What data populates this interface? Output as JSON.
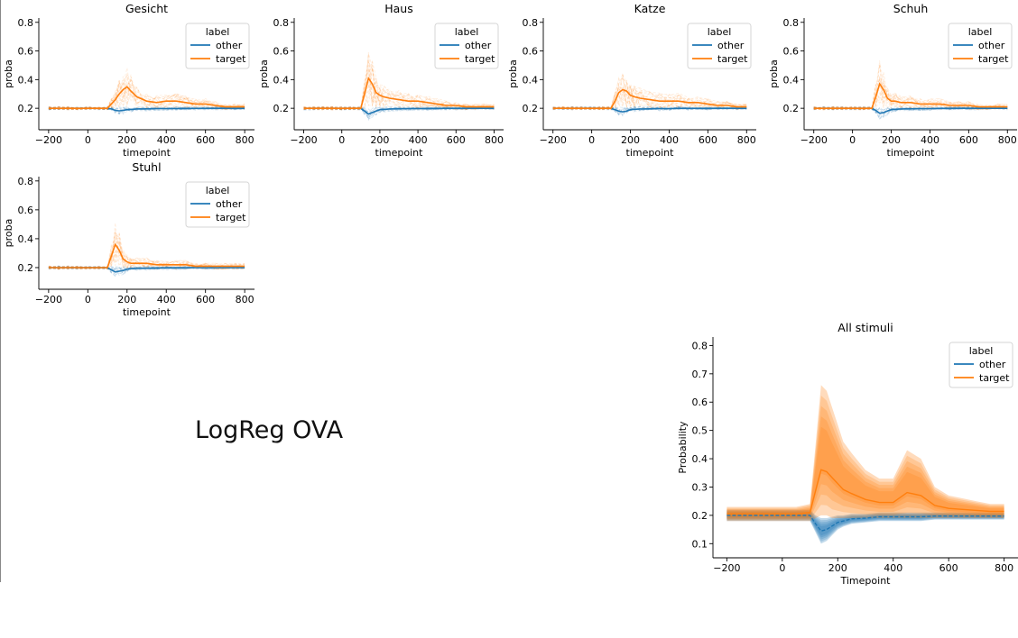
{
  "figure": {
    "caption": "LogReg OVA",
    "colors": {
      "other": "#1f77b4",
      "target": "#ff7f0e"
    }
  },
  "chart_data": [
    {
      "type": "line",
      "title": "Gesicht",
      "xlabel": "timepoint",
      "ylabel": "proba",
      "xlim": [
        -250,
        850
      ],
      "ylim": [
        0.05,
        0.83
      ],
      "xticks": [
        -200,
        0,
        200,
        400,
        600,
        800
      ],
      "yticks": [
        0.2,
        0.4,
        0.6,
        0.8
      ],
      "legend": {
        "title": "label",
        "position": "top-right",
        "entries": [
          "other",
          "target"
        ]
      },
      "x": [
        -200,
        -150,
        -100,
        -50,
        0,
        50,
        100,
        120,
        140,
        160,
        180,
        200,
        220,
        250,
        300,
        350,
        400,
        450,
        500,
        550,
        600,
        650,
        700,
        750,
        800
      ],
      "series": [
        {
          "name": "other",
          "values": [
            0.2,
            0.2,
            0.2,
            0.2,
            0.2,
            0.2,
            0.2,
            0.195,
            0.185,
            0.182,
            0.185,
            0.19,
            0.192,
            0.195,
            0.196,
            0.197,
            0.198,
            0.198,
            0.199,
            0.199,
            0.199,
            0.2,
            0.2,
            0.2,
            0.2
          ]
        },
        {
          "name": "target",
          "values": [
            0.2,
            0.2,
            0.2,
            0.2,
            0.2,
            0.2,
            0.2,
            0.23,
            0.26,
            0.3,
            0.33,
            0.35,
            0.32,
            0.28,
            0.25,
            0.24,
            0.25,
            0.25,
            0.24,
            0.23,
            0.23,
            0.22,
            0.21,
            0.21,
            0.21
          ]
        }
      ]
    },
    {
      "type": "line",
      "title": "Haus",
      "xlabel": "timepoint",
      "ylabel": "proba",
      "xlim": [
        -250,
        850
      ],
      "ylim": [
        0.05,
        0.83
      ],
      "xticks": [
        -200,
        0,
        200,
        400,
        600,
        800
      ],
      "yticks": [
        0.2,
        0.4,
        0.6,
        0.8
      ],
      "legend": {
        "title": "label",
        "position": "top-right",
        "entries": [
          "other",
          "target"
        ]
      },
      "x": [
        -200,
        -150,
        -100,
        -50,
        0,
        50,
        100,
        120,
        140,
        160,
        180,
        200,
        220,
        250,
        300,
        350,
        400,
        450,
        500,
        550,
        600,
        650,
        700,
        750,
        800
      ],
      "series": [
        {
          "name": "other",
          "values": [
            0.2,
            0.2,
            0.2,
            0.2,
            0.2,
            0.2,
            0.2,
            0.18,
            0.16,
            0.17,
            0.18,
            0.19,
            0.192,
            0.195,
            0.196,
            0.197,
            0.198,
            0.199,
            0.199,
            0.2,
            0.2,
            0.2,
            0.2,
            0.2,
            0.2
          ]
        },
        {
          "name": "target",
          "values": [
            0.2,
            0.2,
            0.2,
            0.2,
            0.2,
            0.2,
            0.2,
            0.3,
            0.41,
            0.37,
            0.31,
            0.29,
            0.28,
            0.27,
            0.26,
            0.25,
            0.25,
            0.24,
            0.23,
            0.22,
            0.22,
            0.21,
            0.21,
            0.21,
            0.21
          ]
        }
      ]
    },
    {
      "type": "line",
      "title": "Katze",
      "xlabel": "timepoint",
      "ylabel": "proba",
      "xlim": [
        -250,
        850
      ],
      "ylim": [
        0.05,
        0.83
      ],
      "xticks": [
        -200,
        0,
        200,
        400,
        600,
        800
      ],
      "yticks": [
        0.2,
        0.4,
        0.6,
        0.8
      ],
      "legend": {
        "title": "label",
        "position": "top-right",
        "entries": [
          "other",
          "target"
        ]
      },
      "x": [
        -200,
        -150,
        -100,
        -50,
        0,
        50,
        100,
        120,
        140,
        160,
        180,
        200,
        220,
        250,
        300,
        350,
        400,
        450,
        500,
        550,
        600,
        650,
        700,
        750,
        800
      ],
      "series": [
        {
          "name": "other",
          "values": [
            0.2,
            0.2,
            0.2,
            0.2,
            0.2,
            0.2,
            0.2,
            0.19,
            0.18,
            0.175,
            0.18,
            0.19,
            0.193,
            0.195,
            0.196,
            0.197,
            0.198,
            0.199,
            0.199,
            0.2,
            0.2,
            0.2,
            0.2,
            0.2,
            0.2
          ]
        },
        {
          "name": "target",
          "values": [
            0.2,
            0.2,
            0.2,
            0.2,
            0.2,
            0.2,
            0.2,
            0.25,
            0.31,
            0.33,
            0.32,
            0.29,
            0.28,
            0.27,
            0.26,
            0.25,
            0.25,
            0.25,
            0.24,
            0.24,
            0.23,
            0.22,
            0.22,
            0.21,
            0.21
          ]
        }
      ]
    },
    {
      "type": "line",
      "title": "Schuh",
      "xlabel": "timepoint",
      "ylabel": "proba",
      "xlim": [
        -250,
        850
      ],
      "ylim": [
        0.05,
        0.83
      ],
      "xticks": [
        -200,
        0,
        200,
        400,
        600,
        800
      ],
      "yticks": [
        0.2,
        0.4,
        0.6,
        0.8
      ],
      "legend": {
        "title": "label",
        "position": "top-right",
        "entries": [
          "other",
          "target"
        ]
      },
      "x": [
        -200,
        -150,
        -100,
        -50,
        0,
        50,
        100,
        120,
        140,
        160,
        180,
        200,
        220,
        250,
        300,
        350,
        400,
        450,
        500,
        550,
        600,
        650,
        700,
        750,
        800
      ],
      "series": [
        {
          "name": "other",
          "values": [
            0.2,
            0.2,
            0.2,
            0.2,
            0.2,
            0.2,
            0.2,
            0.185,
            0.165,
            0.17,
            0.18,
            0.19,
            0.193,
            0.195,
            0.196,
            0.197,
            0.198,
            0.199,
            0.199,
            0.2,
            0.2,
            0.2,
            0.2,
            0.2,
            0.2
          ]
        },
        {
          "name": "target",
          "values": [
            0.2,
            0.2,
            0.2,
            0.2,
            0.2,
            0.2,
            0.2,
            0.28,
            0.37,
            0.33,
            0.27,
            0.25,
            0.25,
            0.24,
            0.24,
            0.23,
            0.23,
            0.23,
            0.22,
            0.22,
            0.22,
            0.21,
            0.21,
            0.21,
            0.21
          ]
        }
      ]
    },
    {
      "type": "line",
      "title": "Stuhl",
      "xlabel": "timepoint",
      "ylabel": "proba",
      "xlim": [
        -250,
        850
      ],
      "ylim": [
        0.05,
        0.83
      ],
      "xticks": [
        -200,
        0,
        200,
        400,
        600,
        800
      ],
      "yticks": [
        0.2,
        0.4,
        0.6,
        0.8
      ],
      "legend": {
        "title": "label",
        "position": "top-right",
        "entries": [
          "other",
          "target"
        ]
      },
      "x": [
        -200,
        -150,
        -100,
        -50,
        0,
        50,
        100,
        120,
        140,
        160,
        180,
        200,
        220,
        250,
        300,
        350,
        400,
        450,
        500,
        550,
        600,
        650,
        700,
        750,
        800
      ],
      "series": [
        {
          "name": "other",
          "values": [
            0.2,
            0.2,
            0.2,
            0.2,
            0.2,
            0.2,
            0.2,
            0.185,
            0.17,
            0.175,
            0.18,
            0.19,
            0.193,
            0.195,
            0.196,
            0.197,
            0.198,
            0.199,
            0.199,
            0.2,
            0.2,
            0.2,
            0.2,
            0.2,
            0.2
          ]
        },
        {
          "name": "target",
          "values": [
            0.2,
            0.2,
            0.2,
            0.2,
            0.2,
            0.2,
            0.2,
            0.28,
            0.36,
            0.32,
            0.26,
            0.24,
            0.23,
            0.23,
            0.23,
            0.22,
            0.22,
            0.22,
            0.22,
            0.21,
            0.21,
            0.21,
            0.21,
            0.21,
            0.21
          ]
        }
      ]
    },
    {
      "type": "area",
      "title": "All stimuli",
      "xlabel": "Timepoint",
      "ylabel": "Probability",
      "xlim": [
        -250,
        850
      ],
      "ylim": [
        0.05,
        0.83
      ],
      "xticks": [
        -200,
        0,
        200,
        400,
        600,
        800
      ],
      "yticks": [
        0.1,
        0.2,
        0.3,
        0.4,
        0.5,
        0.6,
        0.7,
        0.8
      ],
      "legend": {
        "title": "label",
        "position": "top-right",
        "entries": [
          "other",
          "target"
        ]
      },
      "x": [
        -200,
        -150,
        -100,
        -50,
        0,
        50,
        100,
        120,
        140,
        160,
        180,
        200,
        220,
        250,
        300,
        350,
        400,
        450,
        500,
        550,
        600,
        650,
        700,
        750,
        800
      ],
      "series": [
        {
          "name": "other",
          "lower": [
            0.18,
            0.18,
            0.18,
            0.18,
            0.18,
            0.18,
            0.18,
            0.14,
            0.1,
            0.11,
            0.13,
            0.15,
            0.16,
            0.17,
            0.175,
            0.18,
            0.18,
            0.18,
            0.18,
            0.185,
            0.185,
            0.185,
            0.185,
            0.185,
            0.185
          ],
          "upper": [
            0.22,
            0.22,
            0.22,
            0.22,
            0.22,
            0.22,
            0.22,
            0.2,
            0.19,
            0.19,
            0.195,
            0.2,
            0.2,
            0.205,
            0.205,
            0.21,
            0.21,
            0.21,
            0.21,
            0.21,
            0.21,
            0.21,
            0.21,
            0.21,
            0.21
          ]
        },
        {
          "name": "target",
          "lower": [
            0.18,
            0.18,
            0.18,
            0.18,
            0.18,
            0.18,
            0.18,
            0.19,
            0.2,
            0.2,
            0.19,
            0.19,
            0.19,
            0.19,
            0.19,
            0.19,
            0.19,
            0.19,
            0.19,
            0.19,
            0.19,
            0.19,
            0.19,
            0.19,
            0.19
          ],
          "upper": [
            0.23,
            0.23,
            0.23,
            0.23,
            0.23,
            0.23,
            0.24,
            0.45,
            0.66,
            0.64,
            0.58,
            0.52,
            0.46,
            0.42,
            0.36,
            0.33,
            0.33,
            0.43,
            0.4,
            0.3,
            0.27,
            0.26,
            0.25,
            0.24,
            0.24
          ]
        }
      ]
    }
  ]
}
